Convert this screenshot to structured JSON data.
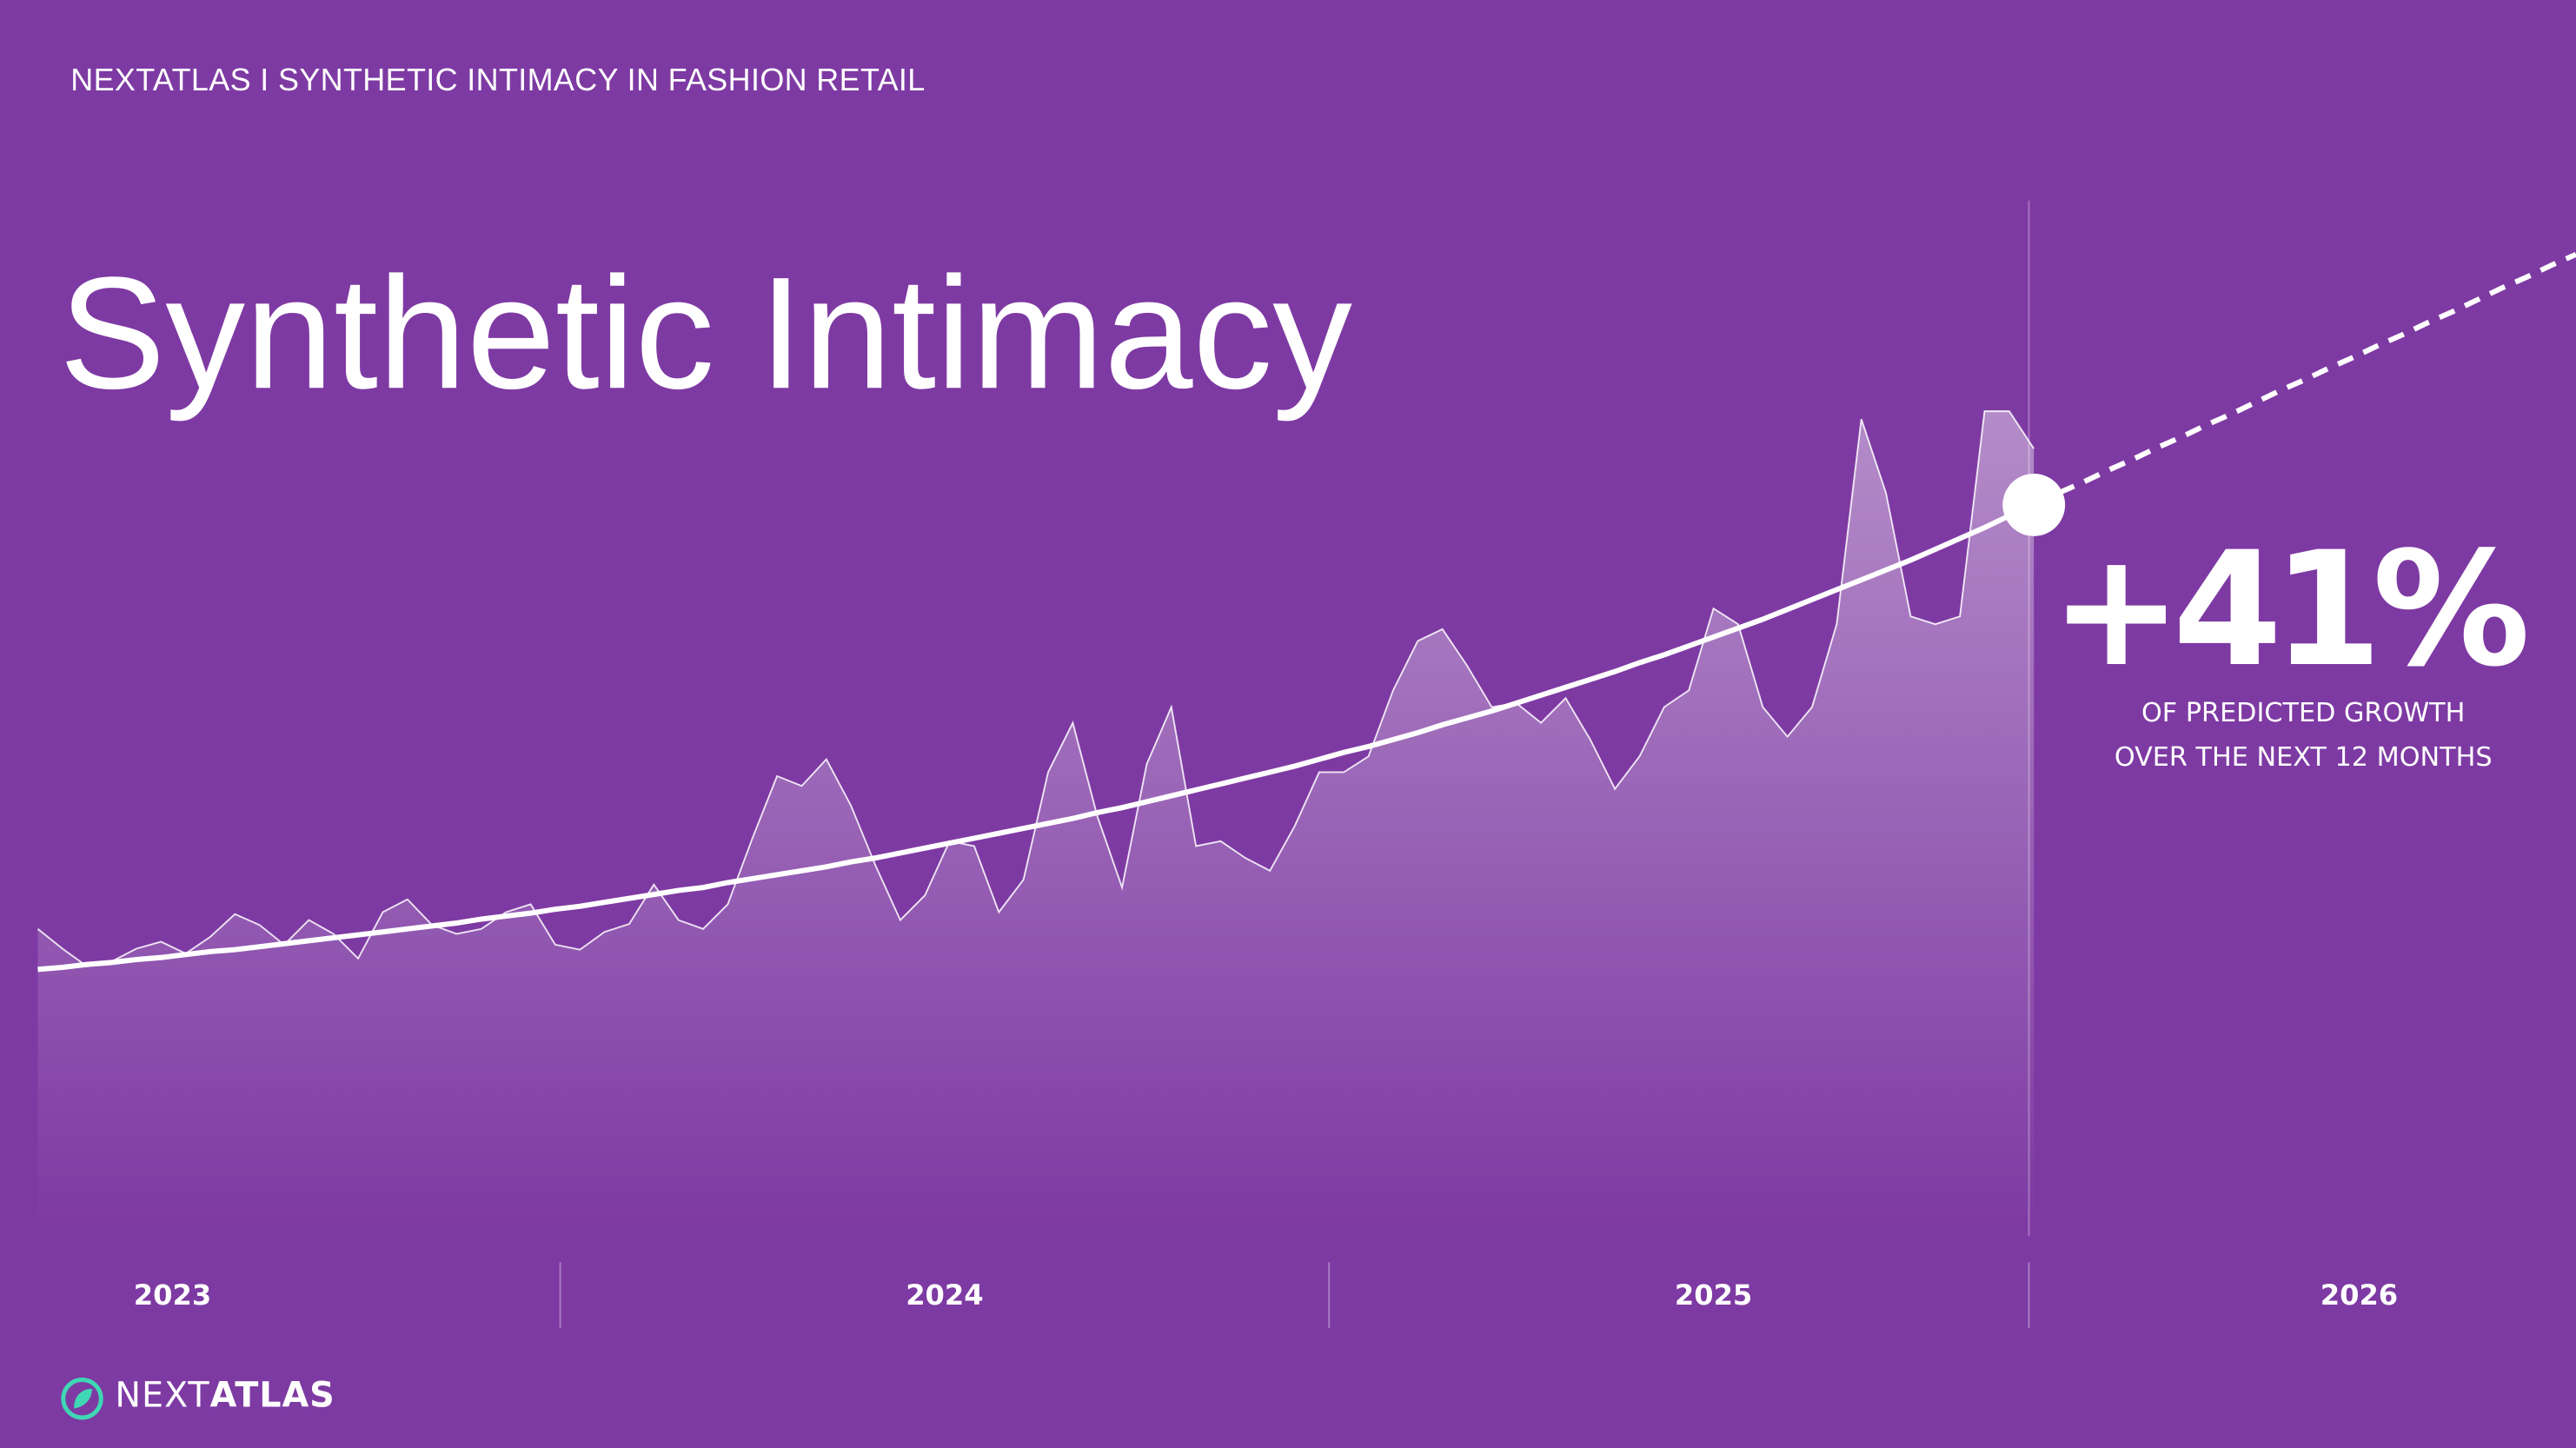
{
  "header": "NEXTATLAS I SYNTHETIC INTIMACY IN FASHION RETAIL",
  "chart_data": {
    "type": "area",
    "title": "Synthetic Intimacy",
    "period_labels": [
      "2023",
      "2024",
      "2025",
      "2026"
    ],
    "ylim": [
      0,
      100
    ],
    "series": [
      {
        "type": "area",
        "color": "#ffffff",
        "values": [
          30.8,
          28.8,
          27,
          27.5,
          28.8,
          29.5,
          28.3,
          30,
          32.3,
          31.2,
          29.2,
          31.7,
          30.3,
          27.8,
          32.5,
          33.8,
          31.2,
          30.3,
          30.8,
          32.5,
          33.3,
          29.2,
          28.7,
          30.5,
          31.3,
          35.3,
          31.7,
          30.8,
          33.3,
          40,
          46.3,
          45.3,
          48,
          43.3,
          37.2,
          31.7,
          34.2,
          39.7,
          39.2,
          32.5,
          35.8,
          46.7,
          51.7,
          42.2,
          35,
          47.5,
          53.3,
          39.2,
          39.7,
          38,
          36.7,
          41.2,
          46.7,
          46.7,
          48.3,
          55,
          60,
          61.2,
          57.5,
          53.3,
          53.7,
          51.7,
          54.2,
          50,
          45,
          48.3,
          53.3,
          55,
          63.3,
          61.7,
          53.3,
          50.3,
          53.3,
          61.7,
          82.5,
          75,
          62.5,
          61.7,
          62.5,
          83.3,
          83.3,
          79.5,
          null,
          null,
          null,
          null,
          null,
          null,
          null,
          null,
          null,
          null,
          null,
          null,
          null,
          null,
          null,
          null,
          null,
          null,
          null,
          null,
          null,
          null
        ]
      },
      {
        "type": "line",
        "color": "#ffffff",
        "values": [
          26.7,
          26.9,
          27.2,
          27.4,
          27.7,
          27.9,
          28.2,
          28.5,
          28.7,
          29.0,
          29.3,
          29.6,
          29.9,
          30.2,
          30.5,
          30.8,
          31.1,
          31.4,
          31.8,
          32.1,
          32.4,
          32.8,
          33.1,
          33.5,
          33.9,
          34.3,
          34.7,
          35.0,
          35.5,
          35.9,
          36.3,
          36.7,
          37.1,
          37.6,
          38.0,
          38.5,
          39.0,
          39.5,
          40.0,
          40.5,
          41.0,
          41.5,
          42.0,
          42.6,
          43.1,
          43.7,
          44.3,
          44.9,
          45.5,
          46.1,
          46.7,
          47.3,
          48.0,
          48.7,
          49.3,
          50.0,
          50.7,
          51.5,
          52.2,
          52.9,
          53.7,
          54.5,
          55.3,
          56.1,
          56.9,
          57.8,
          58.6,
          59.5,
          60.4,
          61.3,
          62.2,
          63.2,
          64.2,
          65.2,
          66.2,
          67.2,
          68.2,
          69.3,
          70.4,
          71.5,
          72.7,
          73.8,
          null,
          null,
          null,
          null,
          null,
          null,
          null,
          null,
          null,
          null,
          null,
          null,
          null,
          null,
          null,
          null,
          null,
          null,
          null,
          null,
          null,
          null
        ],
        "marker_last": true
      },
      {
        "type": "line",
        "color": "#ffffff",
        "dashed": true,
        "values": [
          null,
          null,
          null,
          null,
          null,
          null,
          null,
          null,
          null,
          null,
          null,
          null,
          null,
          null,
          null,
          null,
          null,
          null,
          null,
          null,
          null,
          null,
          null,
          null,
          null,
          null,
          null,
          null,
          null,
          null,
          null,
          null,
          null,
          null,
          null,
          null,
          null,
          null,
          null,
          null,
          null,
          null,
          null,
          null,
          null,
          null,
          null,
          null,
          null,
          null,
          null,
          null,
          null,
          null,
          null,
          null,
          null,
          null,
          null,
          null,
          null,
          null,
          null,
          null,
          null,
          null,
          null,
          null,
          null,
          null,
          null,
          null,
          null,
          null,
          null,
          null,
          null,
          null,
          null,
          null,
          null,
          73.8,
          75.0,
          76.1,
          77.3,
          78.4,
          79.6,
          80.7,
          81.9,
          83.0,
          84.2,
          85.4,
          86.5,
          87.7,
          88.8,
          90.0,
          91.1,
          92.3,
          93.4,
          94.6,
          95.8,
          96.9,
          98.1,
          99.2
        ]
      }
    ]
  },
  "callout": {
    "value_text": "+41%",
    "caption": "OF PREDICTED GROWTH OVER THE NEXT 12 MONTHS"
  },
  "footer": {
    "brand_light": "NEXT",
    "brand_bold": "ATLAS"
  }
}
